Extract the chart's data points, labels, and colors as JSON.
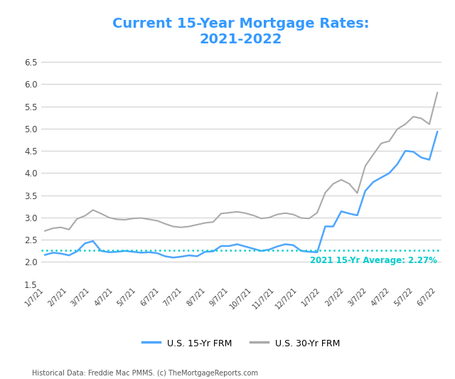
{
  "title": "Current 15-Year Mortgage Rates:\n2021-2022",
  "title_color": "#3399ff",
  "avg_line_value": 2.27,
  "avg_label": "2021 15-Yr Average: 2.27%",
  "avg_color": "#00cccc",
  "footnote": "Historical Data: Freddie Mac PMMS. (c) TheMortgageReports.com",
  "ylim": [
    1.5,
    6.7
  ],
  "yticks": [
    1.5,
    2.0,
    2.5,
    3.0,
    3.5,
    4.0,
    4.5,
    5.0,
    5.5,
    6.0,
    6.5
  ],
  "legend_15yr": "U.S. 15-Yr FRM",
  "legend_30yr": "U.S. 30-Yr FRM",
  "color_15yr": "#4da6ff",
  "color_30yr": "#aaaaaa",
  "x_labels": [
    "1/7/21",
    "2/7/21",
    "3/7/21",
    "4/7/21",
    "5/7/21",
    "6/7/21",
    "7/7/21",
    "8/7/21",
    "9/7/21",
    "10/7/21",
    "11/7/21",
    "12/7/21",
    "1/7/22",
    "2/7/22",
    "3/7/22",
    "4/7/22",
    "5/7/22",
    "6/7/22"
  ],
  "rate_15yr": [
    2.16,
    2.21,
    2.19,
    2.15,
    2.24,
    2.42,
    2.47,
    2.25,
    2.22,
    2.23,
    2.25,
    2.23,
    2.21,
    2.22,
    2.2,
    2.13,
    2.1,
    2.12,
    2.15,
    2.13,
    2.23,
    2.24,
    2.36,
    2.36,
    2.4,
    2.35,
    2.3,
    2.25,
    2.28,
    2.35,
    2.4,
    2.38,
    2.25,
    2.23,
    2.22,
    2.8,
    2.8,
    3.14,
    3.09,
    3.05,
    3.6,
    3.8,
    3.9,
    4.0,
    4.2,
    4.5,
    4.48,
    4.35,
    4.3,
    4.93
  ],
  "rate_30yr": [
    2.7,
    2.76,
    2.78,
    2.73,
    2.97,
    3.04,
    3.17,
    3.09,
    3.0,
    2.96,
    2.95,
    2.98,
    2.99,
    2.96,
    2.93,
    2.86,
    2.8,
    2.78,
    2.8,
    2.84,
    2.88,
    2.9,
    3.09,
    3.11,
    3.13,
    3.1,
    3.05,
    2.98,
    3.0,
    3.07,
    3.1,
    3.07,
    2.99,
    2.98,
    3.11,
    3.56,
    3.76,
    3.85,
    3.76,
    3.55,
    4.16,
    4.42,
    4.67,
    4.72,
    4.99,
    5.1,
    5.27,
    5.23,
    5.1,
    5.81
  ]
}
